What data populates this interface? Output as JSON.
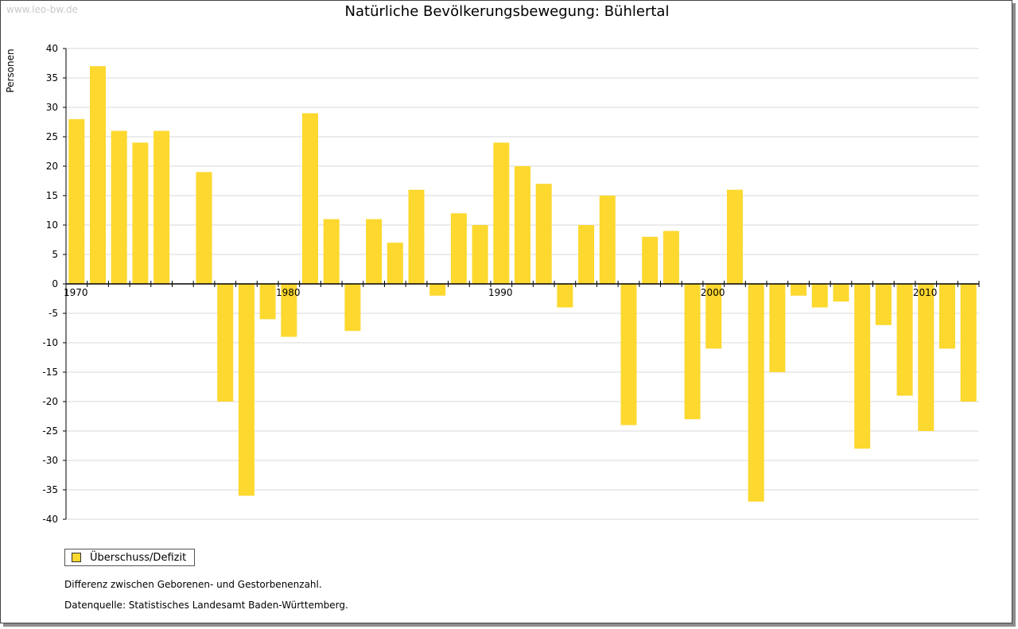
{
  "watermark": "www.leo-bw.de",
  "notes": {
    "difference": "Differenz zwischen Geborenen- und Gestorbenenzahl.",
    "source": "Datenquelle: Statistisches Landesamt Baden-Württemberg."
  },
  "chart_data": {
    "type": "bar",
    "title": "Natürliche Bevölkerungsbewegung: Bühlertal",
    "ylabel": "Personen",
    "xlabel": "",
    "ylim": [
      -40,
      40
    ],
    "yticks": [
      40,
      35,
      30,
      25,
      20,
      15,
      10,
      5,
      0,
      -5,
      -10,
      -15,
      -20,
      -25,
      -30,
      -35,
      -40
    ],
    "x_tick_labels": [
      "1970",
      "1980",
      "1990",
      "2000",
      "2010"
    ],
    "grid": true,
    "legend_position": "bottom-left",
    "bar_color": "#FDD82E",
    "series": [
      {
        "name": "Überschuss/Defizit",
        "years": [
          1970,
          1971,
          1972,
          1973,
          1974,
          1975,
          1976,
          1977,
          1978,
          1979,
          1980,
          1981,
          1982,
          1983,
          1984,
          1985,
          1986,
          1987,
          1988,
          1989,
          1990,
          1991,
          1992,
          1993,
          1994,
          1995,
          1996,
          1997,
          1998,
          1999,
          2000,
          2001,
          2002,
          2003,
          2004,
          2005,
          2006,
          2007,
          2008,
          2009,
          2010,
          2011,
          2012
        ],
        "values": [
          28,
          37,
          26,
          24,
          26,
          0,
          19,
          -20,
          -36,
          -6,
          -9,
          29,
          11,
          -8,
          11,
          7,
          16,
          -2,
          12,
          10,
          24,
          20,
          17,
          -4,
          10,
          15,
          -24,
          8,
          9,
          -23,
          -11,
          16,
          -37,
          -15,
          -2,
          -4,
          -3,
          -28,
          -7,
          -19,
          -25,
          -11,
          -20
        ]
      }
    ]
  }
}
